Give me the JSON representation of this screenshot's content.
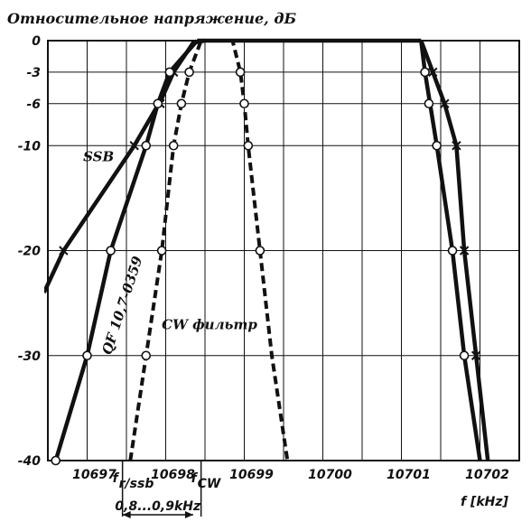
{
  "chart_data": {
    "type": "line",
    "title": "Относительное напряжение, дБ",
    "xlabel": "f [kHz]",
    "ylabel": "",
    "xlim": [
      10696.5,
      10702.5
    ],
    "ylim": [
      -40,
      0
    ],
    "grid": true,
    "y_ticks": [
      {
        "value": 0,
        "label": "0"
      },
      {
        "value": -3,
        "label": "-3"
      },
      {
        "value": -6,
        "label": "-6"
      },
      {
        "value": -10,
        "label": "-10"
      },
      {
        "value": -20,
        "label": "-20"
      },
      {
        "value": -30,
        "label": "-30"
      },
      {
        "value": -40,
        "label": "-40"
      }
    ],
    "x_ticks": [
      {
        "value": 10697,
        "label": "10697"
      },
      {
        "value": 10698,
        "label": "10698"
      },
      {
        "value": 10699,
        "label": "10699"
      },
      {
        "value": 10700,
        "label": "10700"
      },
      {
        "value": 10701,
        "label": "10701"
      },
      {
        "value": 10702,
        "label": "10702"
      }
    ],
    "x_gridlines": [
      10697,
      10697.5,
      10698,
      10698.5,
      10699,
      10699.5,
      10700,
      10700.5,
      10701,
      10701.5,
      10702
    ],
    "x_markers": [
      {
        "value": 10697.45,
        "label": "f",
        "sub": "r/ssb"
      },
      {
        "value": 10698.45,
        "label": "f",
        "sub": "CW"
      }
    ],
    "bracket": {
      "from": 10697.45,
      "to": 10698.35,
      "label": "0,8...0,9kHz"
    },
    "series": [
      {
        "id": "ssb",
        "label": "SSB",
        "style": "solid",
        "marker": "x",
        "points": [
          [
            10696.45,
            -24
          ],
          [
            10696.7,
            -20
          ],
          [
            10697.6,
            -10
          ],
          [
            10697.95,
            -5.5
          ],
          [
            10698.1,
            -3
          ],
          [
            10698.35,
            -0.2
          ],
          [
            10698.5,
            0
          ]
        ],
        "markers": [
          [
            10696.7,
            -20
          ],
          [
            10697.6,
            -10
          ],
          [
            10697.93,
            -6
          ],
          [
            10698.1,
            -3
          ]
        ]
      },
      {
        "id": "qf",
        "label": "QF 10,7-0359",
        "style": "solid",
        "marker": "o",
        "points": [
          [
            10696.6,
            -40
          ],
          [
            10697,
            -30
          ],
          [
            10697.3,
            -20
          ],
          [
            10697.75,
            -10
          ],
          [
            10697.9,
            -6
          ],
          [
            10698.05,
            -3
          ],
          [
            10698.4,
            0
          ]
        ],
        "markers": [
          [
            10696.6,
            -40
          ],
          [
            10697,
            -30
          ],
          [
            10697.3,
            -20
          ],
          [
            10697.75,
            -10
          ],
          [
            10697.9,
            -6
          ],
          [
            10698.05,
            -3
          ]
        ]
      },
      {
        "id": "cw",
        "label": "CW фильтр",
        "style": "dashed",
        "marker": "o",
        "points": [
          [
            10697.55,
            -40
          ],
          [
            10697.75,
            -30
          ],
          [
            10697.95,
            -20
          ],
          [
            10698.1,
            -10
          ],
          [
            10698.2,
            -6
          ],
          [
            10698.3,
            -3
          ],
          [
            10698.45,
            0
          ],
          [
            10698.85,
            0
          ],
          [
            10698.95,
            -3
          ],
          [
            10699.0,
            -6
          ],
          [
            10699.05,
            -10
          ],
          [
            10699.2,
            -20
          ],
          [
            10699.35,
            -30
          ],
          [
            10699.55,
            -40
          ]
        ],
        "markers": [
          [
            10697.75,
            -30
          ],
          [
            10697.95,
            -20
          ],
          [
            10698.1,
            -10
          ],
          [
            10698.2,
            -6
          ],
          [
            10698.3,
            -3
          ],
          [
            10698.95,
            -3
          ],
          [
            10699.0,
            -6
          ],
          [
            10699.05,
            -10
          ],
          [
            10699.2,
            -20
          ]
        ]
      },
      {
        "id": "flat_top",
        "label": "",
        "style": "solid",
        "marker": "none",
        "points": [
          [
            10698.4,
            0
          ],
          [
            10701.25,
            0
          ]
        ],
        "markers": []
      },
      {
        "id": "qf_right",
        "label": "",
        "style": "solid",
        "marker": "o",
        "points": [
          [
            10701.25,
            0
          ],
          [
            10701.3,
            -3
          ],
          [
            10701.45,
            -10
          ],
          [
            10701.65,
            -20
          ],
          [
            10701.8,
            -30
          ],
          [
            10702.0,
            -40
          ]
        ],
        "markers": [
          [
            10701.3,
            -3
          ],
          [
            10701.35,
            -6
          ],
          [
            10701.45,
            -10
          ],
          [
            10701.65,
            -20
          ],
          [
            10701.8,
            -30
          ]
        ]
      },
      {
        "id": "ssb_right",
        "label": "",
        "style": "solid",
        "marker": "x",
        "points": [
          [
            10701.25,
            0
          ],
          [
            10701.4,
            -3
          ],
          [
            10701.55,
            -6
          ],
          [
            10701.7,
            -10
          ],
          [
            10701.8,
            -20
          ],
          [
            10701.95,
            -30
          ],
          [
            10702.1,
            -40
          ]
        ],
        "markers": [
          [
            10701.4,
            -3
          ],
          [
            10701.55,
            -6
          ],
          [
            10701.7,
            -10
          ],
          [
            10701.8,
            -20
          ],
          [
            10701.95,
            -30
          ]
        ]
      }
    ],
    "annotations": [
      {
        "text": "SSB",
        "x": 10696.95,
        "y": -11.5,
        "rotate": 0
      },
      {
        "text": "CW фильтр",
        "x": 10697.95,
        "y": -27.5,
        "rotate": 0
      },
      {
        "text": "QF  10,7-0359",
        "x": 10697.3,
        "y": -30,
        "rotate": -72
      }
    ]
  }
}
